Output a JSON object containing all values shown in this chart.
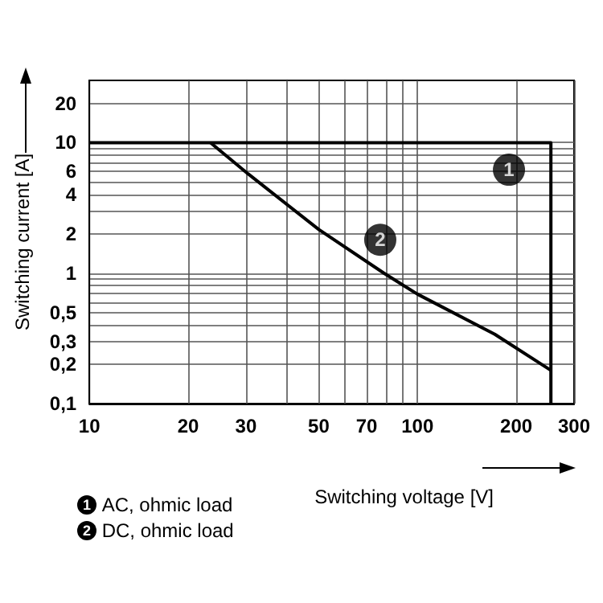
{
  "chart_data": {
    "type": "line",
    "xlabel": "Switching voltage [V]",
    "ylabel": "Switching current [A]",
    "log": "xy",
    "xlim": [
      10,
      300
    ],
    "ylim": [
      0.1,
      30
    ],
    "xticks": [
      10,
      20,
      30,
      {
        "value": 40,
        "label": null
      },
      50,
      {
        "value": 60,
        "label": null
      },
      70,
      {
        "value": 80,
        "label": null
      },
      {
        "value": 90,
        "label": null
      },
      100,
      200,
      300
    ],
    "yticks": [
      {
        "value": 0.1,
        "label": "0,1"
      },
      {
        "value": 0.2,
        "label": "0,2"
      },
      {
        "value": 0.3,
        "label": "0,3"
      },
      {
        "value": 0.4,
        "label": null
      },
      {
        "value": 0.5,
        "label": "0,5"
      },
      {
        "value": 0.6,
        "label": null
      },
      {
        "value": 0.7,
        "label": null
      },
      {
        "value": 0.8,
        "label": null
      },
      {
        "value": 0.9,
        "label": null
      },
      1,
      2,
      {
        "value": 3,
        "label": null
      },
      4,
      {
        "value": 5,
        "label": null
      },
      6,
      {
        "value": 7,
        "label": null
      },
      {
        "value": 8,
        "label": null
      },
      {
        "value": 9,
        "label": null
      },
      10,
      20
    ],
    "grid": true,
    "legend": "bottom left",
    "marker": "none",
    "line_style": "solid",
    "series": [
      {
        "name": "AC, ohmic load",
        "color": "#000000",
        "x": [
          10,
          255,
          255
        ],
        "values": [
          10,
          10,
          0.1
        ]
      },
      {
        "name": "DC, ohmic load",
        "color": "#000000",
        "x": [
          23.4,
          30.5,
          50,
          79,
          100,
          172,
          255
        ],
        "values": [
          10,
          5.75,
          2.16,
          1.0,
          0.69,
          0.34,
          0.18
        ]
      }
    ],
    "annotations": [
      {
        "text": "1",
        "x": 190,
        "y": 6.2
      },
      {
        "text": "2",
        "x": 77,
        "y": 1.8
      }
    ]
  }
}
